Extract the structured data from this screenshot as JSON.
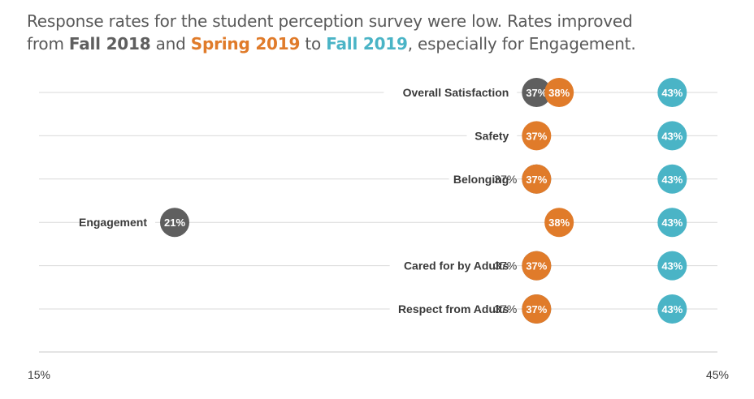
{
  "title": {
    "line1": "Response rates for the student perception survey were low. Rates improved",
    "line2_pre": "from ",
    "line2_fall2018": "Fall 2018",
    "line2_and": " and ",
    "line2_spring2019": "Spring 2019",
    "line2_to": " to ",
    "line2_fall2019": "Fall 2019",
    "line2_post": ", especially for Engagement."
  },
  "colors": {
    "fall2018": "#5f5f5f",
    "spring2019": "#e07b2a",
    "fall2019": "#4ab4c6",
    "gridline": "#d9d9d9",
    "axis": "#c8c8c8"
  },
  "chart_data": {
    "type": "scatter",
    "title": "",
    "xlim": [
      15,
      45
    ],
    "x_tick_labels": [
      "15%",
      "45%"
    ],
    "categories": [
      "Overall Satisfaction",
      "Safety",
      "Belonging",
      "Engagement",
      "Cared for by Adults",
      "Respect from Adults"
    ],
    "series": [
      {
        "name": "Fall 2018",
        "color": "#5f5f5f",
        "values": [
          37,
          null,
          37,
          21,
          37,
          37
        ],
        "labels": [
          "37%",
          "",
          "37%",
          "21%",
          "37%",
          "37%"
        ]
      },
      {
        "name": "Spring 2019",
        "color": "#e07b2a",
        "values": [
          38,
          37,
          37,
          38,
          37,
          37
        ],
        "labels": [
          "38%",
          "37%",
          "37%",
          "38%",
          "37%",
          "37%"
        ]
      },
      {
        "name": "Fall 2019",
        "color": "#4ab4c6",
        "values": [
          43,
          43,
          43,
          43,
          43,
          43
        ],
        "labels": [
          "43%",
          "43%",
          "43%",
          "43%",
          "43%",
          "43%"
        ]
      }
    ]
  }
}
